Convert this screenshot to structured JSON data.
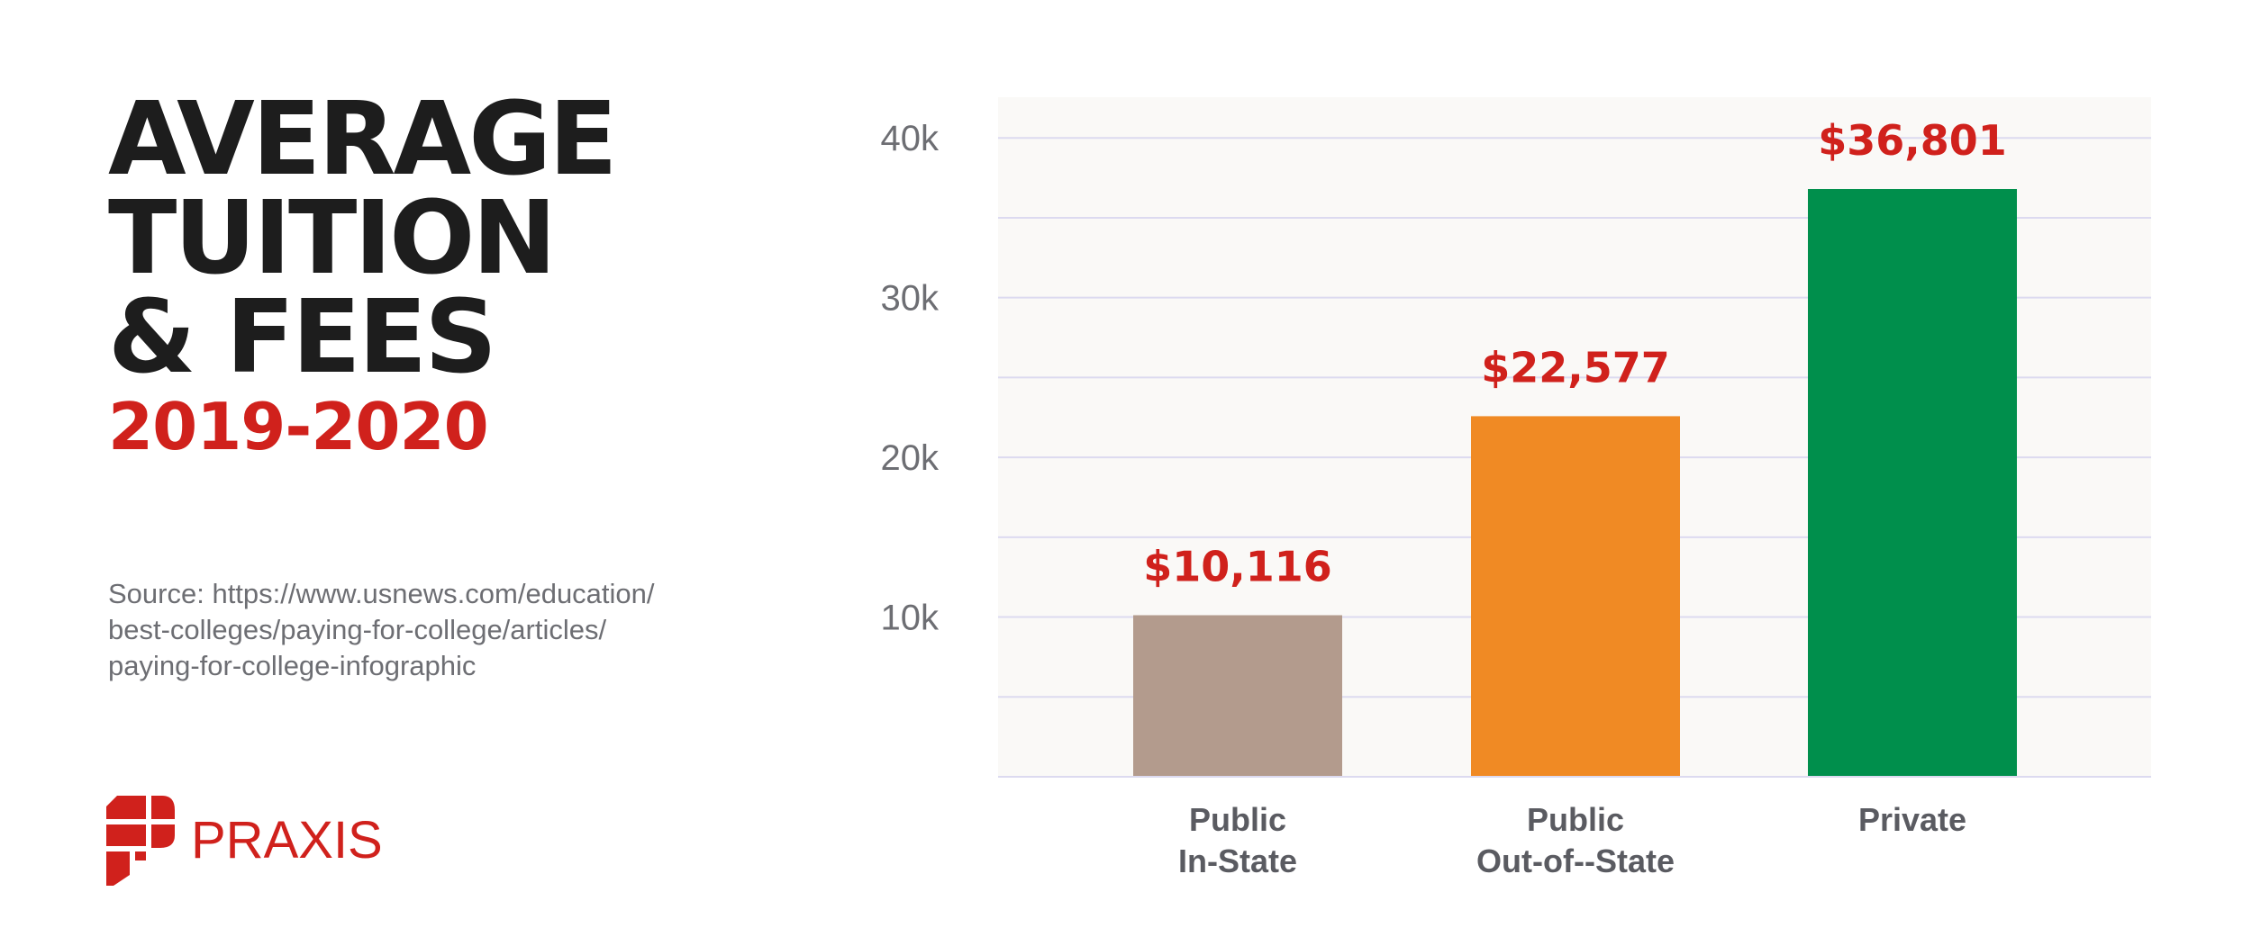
{
  "title": {
    "lines": [
      "AVERAGE",
      "TUITION",
      "& FEES"
    ],
    "subtitle": "2019-2020"
  },
  "source": {
    "lines": [
      "Source: https://www.usnews.com/education/",
      "best-colleges/paying-for-college/articles/",
      "paying-for-college-infographic"
    ]
  },
  "logo": {
    "text": "PRAXIS",
    "icon": "praxis-logo-icon",
    "color": "#d0211c"
  },
  "chart_data": {
    "type": "bar",
    "title": "AVERAGE TUITION & FEES",
    "subtitle": "2019-2020",
    "categories": [
      [
        "Public",
        "In-State"
      ],
      [
        "Public",
        "Out-of--State"
      ],
      [
        "Private"
      ]
    ],
    "values": [
      10116,
      22577,
      36801
    ],
    "value_labels": [
      "$10,116",
      "$22,577",
      "$36,801"
    ],
    "colors": [
      "#b39b8d",
      "#f08a24",
      "#008f4c"
    ],
    "yticks": [
      10000,
      20000,
      30000,
      40000
    ],
    "ytick_labels": [
      "10k",
      "20k",
      "30k",
      "40k"
    ],
    "ylim": [
      0,
      40000
    ],
    "grid": true,
    "plot_background": "#faf9f7",
    "gridline_color": "#dcdaf0",
    "label_color": "#d0211c"
  }
}
